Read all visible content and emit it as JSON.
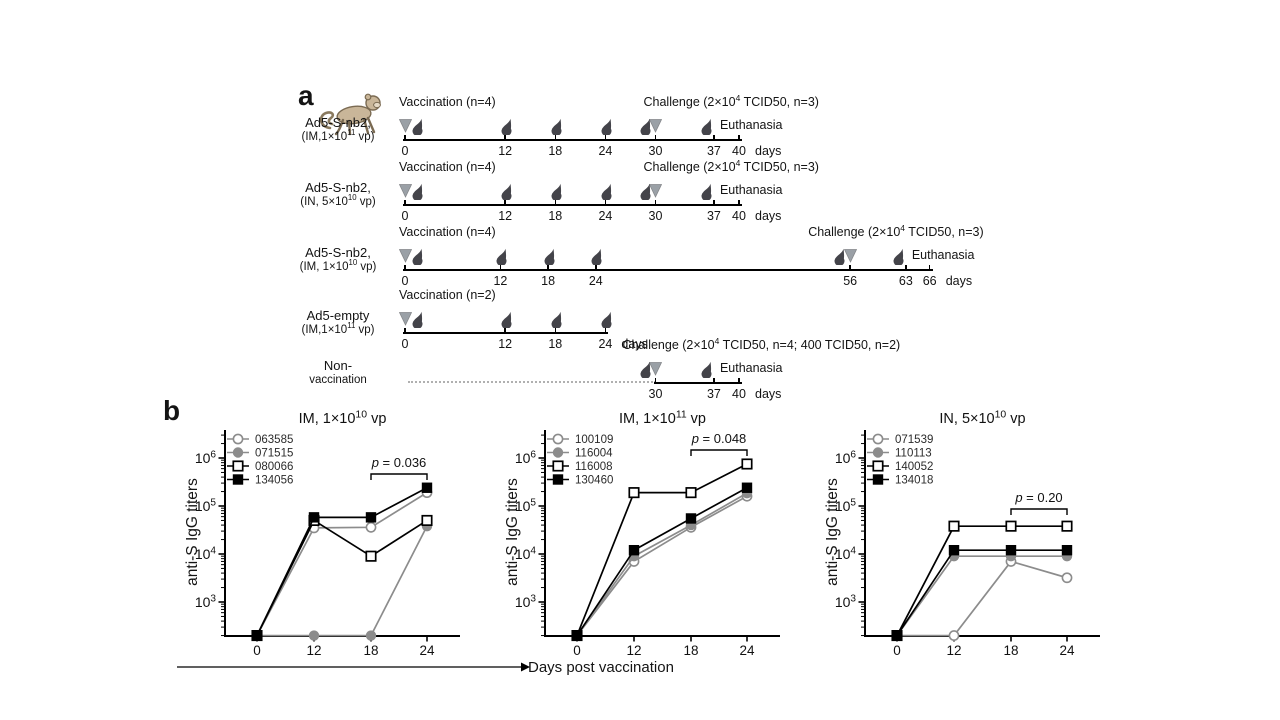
{
  "panel_a": {
    "label": "a",
    "monkey_icon": "monkey-icon",
    "timelines": [
      {
        "group_line1": "Ad5-S-nb2,",
        "group_line2": "(IM,1×10^11 vp)",
        "vaccination_label": "Vaccination (n=4)",
        "challenge_label": "Challenge (2×10^4 TCID50, n=3)",
        "euthanasia_label": "Euthanasia",
        "tick_days": [
          0,
          12,
          18,
          24,
          30,
          37,
          40
        ],
        "unit_label": "days",
        "axis_start": 0,
        "axis_end": 40,
        "droplet_days": [
          0,
          12,
          18,
          24,
          30,
          37
        ],
        "triangle_days": [
          0,
          30
        ],
        "challenge_day": 30,
        "euthanasia_day": 37,
        "dotted_prefix": false
      },
      {
        "group_line1": "Ad5-S-nb2,",
        "group_line2": "(IN, 5×10^10 vp)",
        "vaccination_label": "Vaccination (n=4)",
        "challenge_label": "Challenge (2×10^4 TCID50, n=3)",
        "euthanasia_label": "Euthanasia",
        "tick_days": [
          0,
          12,
          18,
          24,
          30,
          37,
          40
        ],
        "unit_label": "days",
        "axis_start": 0,
        "axis_end": 40,
        "droplet_days": [
          0,
          12,
          18,
          24,
          30,
          37
        ],
        "triangle_days": [
          0,
          30
        ],
        "challenge_day": 30,
        "euthanasia_day": 37,
        "dotted_prefix": false
      },
      {
        "group_line1": "Ad5-S-nb2,",
        "group_line2": "(IM, 1×10^10 vp)",
        "vaccination_label": "Vaccination (n=4)",
        "challenge_label": "Challenge (2×10^4 TCID50, n=3)",
        "euthanasia_label": "Euthanasia",
        "tick_days": [
          0,
          12,
          18,
          24,
          56,
          63,
          66
        ],
        "unit_label": "days",
        "axis_start": 0,
        "axis_end": 66,
        "droplet_days": [
          0,
          12,
          18,
          24,
          56,
          63
        ],
        "triangle_days": [
          0,
          56
        ],
        "challenge_day": 56,
        "euthanasia_day": 63,
        "dotted_prefix": false
      },
      {
        "group_line1": "Ad5-empty",
        "group_line2": "(IM,1×10^11 vp)",
        "vaccination_label": "Vaccination (n=2)",
        "challenge_label": null,
        "euthanasia_label": null,
        "tick_days": [
          0,
          12,
          18,
          24
        ],
        "unit_label": "days",
        "axis_start": 0,
        "axis_end": 24,
        "droplet_days": [
          0,
          12,
          18,
          24
        ],
        "triangle_days": [
          0
        ],
        "challenge_day": null,
        "euthanasia_day": null,
        "dotted_prefix": false
      },
      {
        "group_line1": "Non-",
        "group_line2": "vaccination",
        "vaccination_label": null,
        "challenge_label": "Challenge (2×10^4 TCID50, n=4; 400 TCID50, n=2)",
        "euthanasia_label": "Euthanasia",
        "tick_days": [
          30,
          37,
          40
        ],
        "unit_label": "days",
        "axis_start": 30,
        "axis_end": 40,
        "droplet_days": [
          30,
          37
        ],
        "triangle_days": [
          30
        ],
        "challenge_day": 30,
        "euthanasia_day": 37,
        "dotted_prefix": true
      }
    ]
  },
  "panel_b": {
    "label": "b",
    "y_axis_title": "anti-S IgG titers",
    "x_axis_title": "Days post vaccination"
  },
  "chart_data": [
    {
      "type": "line",
      "title": "IM, 1×10^10 vp",
      "x": [
        0,
        12,
        18,
        24
      ],
      "xlabel": "Days post vaccination",
      "ylabel": "anti-S IgG titers",
      "yscale": "log",
      "ylim": [
        200,
        4000000
      ],
      "y_tick_labels": [
        "10^3",
        "10^4",
        "10^5",
        "10^6"
      ],
      "grid": false,
      "legend_position": "upper-left",
      "p_label": "p = 0.036",
      "p_span": [
        18,
        24
      ],
      "series": [
        {
          "name": "063585",
          "marker": "open-circle",
          "color": "#8c8c8c",
          "values": [
            200,
            35000,
            36000,
            190000
          ]
        },
        {
          "name": "071515",
          "marker": "filled-circle",
          "color": "#8c8c8c",
          "values": [
            200,
            200,
            200,
            38000
          ]
        },
        {
          "name": "080066",
          "marker": "open-square",
          "color": "#000000",
          "values": [
            200,
            50000,
            9000,
            50000
          ]
        },
        {
          "name": "134056",
          "marker": "filled-square",
          "color": "#000000",
          "values": [
            200,
            58000,
            58000,
            240000
          ]
        }
      ]
    },
    {
      "type": "line",
      "title": "IM, 1×10^11 vp",
      "x": [
        0,
        12,
        18,
        24
      ],
      "xlabel": "Days post vaccination",
      "ylabel": "anti-S IgG titers",
      "yscale": "log",
      "ylim": [
        200,
        4000000
      ],
      "y_tick_labels": [
        "10^3",
        "10^4",
        "10^5",
        "10^6"
      ],
      "grid": false,
      "legend_position": "upper-left",
      "p_label": "p = 0.048",
      "p_span": [
        18,
        24
      ],
      "series": [
        {
          "name": "100109",
          "marker": "open-circle",
          "color": "#8c8c8c",
          "values": [
            200,
            7000,
            36000,
            160000
          ]
        },
        {
          "name": "116004",
          "marker": "filled-circle",
          "color": "#8c8c8c",
          "values": [
            200,
            9000,
            40000,
            185000
          ]
        },
        {
          "name": "116008",
          "marker": "open-square",
          "color": "#000000",
          "values": [
            200,
            190000,
            190000,
            750000
          ]
        },
        {
          "name": "130460",
          "marker": "filled-square",
          "color": "#000000",
          "values": [
            200,
            12000,
            55000,
            240000
          ]
        }
      ]
    },
    {
      "type": "line",
      "title": "IN, 5×10^10 vp",
      "x": [
        0,
        12,
        18,
        24
      ],
      "xlabel": "Days post vaccination",
      "ylabel": "anti-S IgG titers",
      "yscale": "log",
      "ylim": [
        200,
        4000000
      ],
      "y_tick_labels": [
        "10^3",
        "10^4",
        "10^5",
        "10^6"
      ],
      "grid": false,
      "legend_position": "upper-left",
      "p_label": "p = 0.20",
      "p_span": [
        18,
        24
      ],
      "series": [
        {
          "name": "071539",
          "marker": "open-circle",
          "color": "#8c8c8c",
          "values": [
            200,
            200,
            7000,
            3200
          ]
        },
        {
          "name": "110113",
          "marker": "filled-circle",
          "color": "#8c8c8c",
          "values": [
            200,
            9000,
            9000,
            9000
          ]
        },
        {
          "name": "140052",
          "marker": "open-square",
          "color": "#000000",
          "values": [
            200,
            38000,
            38000,
            38000
          ]
        },
        {
          "name": "134018",
          "marker": "filled-square",
          "color": "#000000",
          "values": [
            200,
            12000,
            12000,
            12000
          ]
        }
      ]
    }
  ],
  "icons": {
    "monkey": "monkey-icon",
    "droplet": "blood-drop-icon",
    "triangle": "event-triangle-icon"
  },
  "colors": {
    "series_gray": "#8c8c8c",
    "series_black": "#000000",
    "triangle_gray": "#9aa0a6",
    "droplet_dark": "#44444a",
    "dotted_gray": "#b0b0b0"
  }
}
